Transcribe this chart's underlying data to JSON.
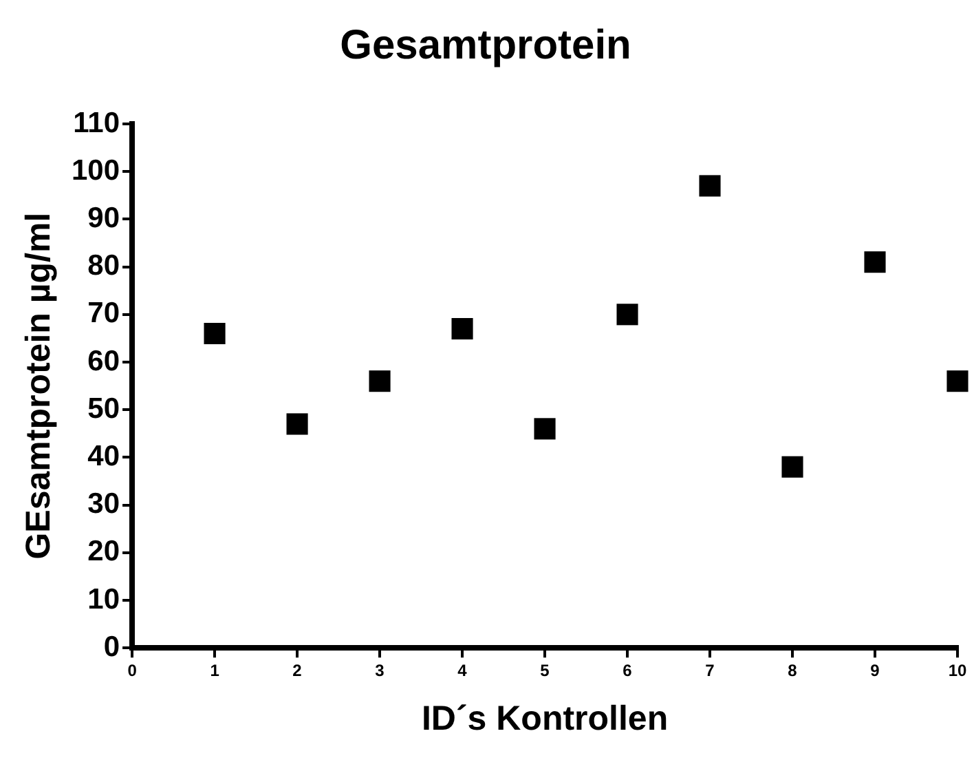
{
  "chart_data": {
    "type": "scatter",
    "title": "Gesamtprotein",
    "xlabel": "ID´s Kontrollen",
    "ylabel": "GEsamtprotein µg/ml",
    "x": [
      1,
      2,
      3,
      4,
      5,
      6,
      7,
      8,
      9,
      10
    ],
    "series": [
      {
        "color": "#000000",
        "values": [
          66,
          47,
          56,
          67,
          46,
          70,
          97,
          38,
          81,
          56
        ]
      }
    ],
    "xlim": [
      0,
      10
    ],
    "xticks": [
      0,
      1,
      2,
      3,
      4,
      5,
      6,
      7,
      8,
      9,
      10
    ],
    "ylim": [
      0,
      110
    ],
    "yticks": [
      0,
      10,
      20,
      30,
      40,
      50,
      60,
      70,
      80,
      90,
      100,
      110
    ],
    "marker": "square",
    "grid": false,
    "legend": false
  }
}
